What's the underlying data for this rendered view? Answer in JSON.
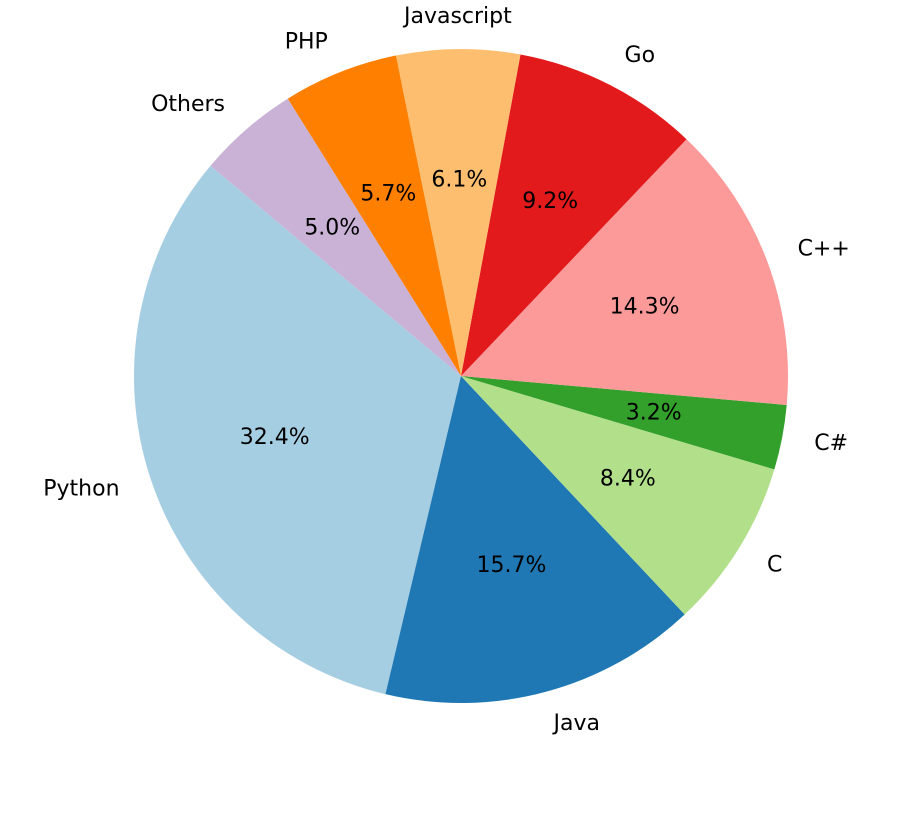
{
  "chart_data": {
    "type": "pie",
    "title": "",
    "categories": [
      "Python",
      "Java",
      "C",
      "C#",
      "C++",
      "Go",
      "Javascript",
      "PHP",
      "Others"
    ],
    "values": [
      32.4,
      15.7,
      8.4,
      3.2,
      14.3,
      9.2,
      6.1,
      5.7,
      5.0
    ],
    "percent_labels": [
      "32.4%",
      "15.7%",
      "8.4%",
      "3.2%",
      "14.3%",
      "9.2%",
      "6.1%",
      "5.7%",
      "5.0%"
    ],
    "colors": [
      "#a6cee3",
      "#1f78b4",
      "#b2df8a",
      "#33a02c",
      "#fb9a99",
      "#e31a1c",
      "#fdbf6f",
      "#ff7f00",
      "#cab2d6"
    ],
    "start_angle_deg": 140,
    "direction": "counterclockwise",
    "legend": "none"
  }
}
